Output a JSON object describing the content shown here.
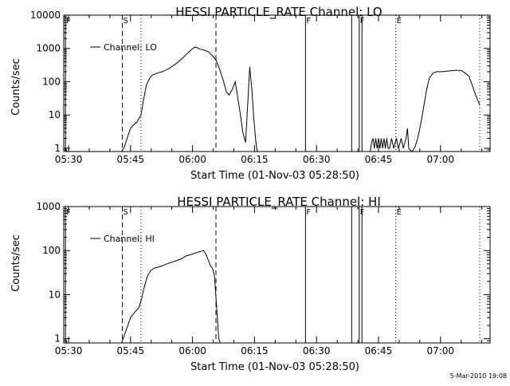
{
  "footer": {
    "timestamp": "5-Mar-2010 19:08"
  },
  "chart_data": [
    {
      "type": "line",
      "title": "HESSI PARTICLE_RATE Channel: LO",
      "xlabel": "Start Time (01-Nov-03 05:28:50)",
      "ylabel": "Counts/sec",
      "xscale": "time",
      "xlim": [
        "05:28:50",
        "07:12:00"
      ],
      "ylim": [
        0.8,
        10000
      ],
      "yscale": "log",
      "xticks": [
        "05:30",
        "05:45",
        "06:00",
        "06:15",
        "06:30",
        "06:45",
        "07:00"
      ],
      "yticks": [
        "1",
        "10",
        "100",
        "1000",
        "10000"
      ],
      "legend": {
        "position": "top-left",
        "entries": [
          "Channel: LO"
        ]
      },
      "grid": false,
      "markers": [
        {
          "label": "F",
          "time": "05:29:15",
          "style": "solid"
        },
        {
          "label": "S",
          "time": "05:43:00",
          "style": "dashed"
        },
        {
          "time": "05:47:30",
          "style": "dotted"
        },
        {
          "time": "06:05:40",
          "style": "dashed"
        },
        {
          "label": "F",
          "time": "06:27:20",
          "style": "solid"
        },
        {
          "time": "06:38:30",
          "style": "solid"
        },
        {
          "label": "F",
          "time": "06:40:20",
          "style": "solid"
        },
        {
          "time": "06:41:00",
          "style": "solid"
        },
        {
          "label": "E",
          "time": "06:49:10",
          "style": "dotted"
        },
        {
          "time": "07:09:30",
          "style": "dotted"
        }
      ],
      "series": [
        {
          "name": "Channel: LO",
          "segments": [
            [
              [
                "05:29:15",
                1
              ],
              [
                "05:29:35",
                0.8
              ]
            ],
            [
              [
                "05:42:50",
                0.8
              ],
              [
                "05:43:30",
                1.1
              ],
              [
                "05:44:10",
                2
              ],
              [
                "05:45:00",
                4
              ],
              [
                "05:45:40",
                5
              ],
              [
                "05:46:30",
                6
              ],
              [
                "05:47:30",
                10
              ],
              [
                "05:48:10",
                30
              ],
              [
                "05:48:50",
                80
              ],
              [
                "05:49:40",
                130
              ],
              [
                "05:50:20",
                160
              ],
              [
                "05:51:20",
                180
              ],
              [
                "05:52:40",
                200
              ],
              [
                "05:54:20",
                250
              ],
              [
                "05:56:00",
                350
              ],
              [
                "05:57:30",
                500
              ],
              [
                "05:58:40",
                700
              ],
              [
                "05:59:50",
                950
              ],
              [
                "06:00:30",
                1100
              ],
              [
                "06:01:10",
                1050
              ],
              [
                "06:01:50",
                950
              ],
              [
                "06:02:40",
                900
              ],
              [
                "06:03:50",
                800
              ],
              [
                "06:04:50",
                600
              ],
              [
                "06:05:40",
                450
              ],
              [
                "06:06:30",
                250
              ],
              [
                "06:07:20",
                120
              ],
              [
                "06:08:10",
                50
              ],
              [
                "06:08:50",
                40
              ],
              [
                "06:09:40",
                60
              ],
              [
                "06:10:20",
                100
              ],
              [
                "06:10:50",
                40
              ],
              [
                "06:11:30",
                12
              ],
              [
                "06:12:10",
                3
              ],
              [
                "06:12:50",
                1.5
              ],
              [
                "06:13:20",
                20
              ],
              [
                "06:13:50",
                280
              ],
              [
                "06:14:20",
                60
              ],
              [
                "06:14:50",
                8
              ],
              [
                "06:15:20",
                1.5
              ],
              [
                "06:15:40",
                0.8
              ]
            ],
            [
              [
                "06:43:00",
                0.8
              ],
              [
                "06:43:20",
                1.5
              ],
              [
                "06:43:40",
                2
              ],
              [
                "06:44:00",
                1
              ],
              [
                "06:44:20",
                2
              ],
              [
                "06:44:40",
                1
              ],
              [
                "06:45:00",
                2
              ],
              [
                "06:45:20",
                1
              ],
              [
                "06:45:40",
                2
              ],
              [
                "06:46:00",
                1
              ],
              [
                "06:46:20",
                2
              ],
              [
                "06:46:40",
                1
              ],
              [
                "06:47:00",
                2
              ],
              [
                "06:47:20",
                1
              ],
              [
                "06:47:40",
                1
              ],
              [
                "06:48:10",
                2
              ],
              [
                "06:48:40",
                1
              ],
              [
                "06:49:20",
                2
              ],
              [
                "06:49:50",
                1
              ],
              [
                "06:50:30",
                2
              ],
              [
                "06:51:00",
                1
              ],
              [
                "06:51:40",
                2
              ],
              [
                "06:52:00",
                4
              ],
              [
                "06:52:20",
                1
              ],
              [
                "06:53:00",
                0.8
              ]
            ],
            [
              [
                "06:53:10",
                0.8
              ],
              [
                "06:53:50",
                1.1
              ],
              [
                "06:54:30",
                2
              ],
              [
                "06:55:10",
                5
              ],
              [
                "06:55:50",
                15
              ],
              [
                "06:56:40",
                60
              ],
              [
                "06:57:20",
                130
              ],
              [
                "06:58:10",
                180
              ],
              [
                "06:59:00",
                200
              ],
              [
                "07:00:30",
                200
              ],
              [
                "07:02:00",
                210
              ],
              [
                "07:03:30",
                220
              ],
              [
                "07:05:00",
                220
              ],
              [
                "07:06:00",
                180
              ],
              [
                "07:06:50",
                150
              ],
              [
                "07:07:40",
                80
              ],
              [
                "07:08:30",
                40
              ],
              [
                "07:09:30",
                20
              ]
            ]
          ]
        }
      ]
    },
    {
      "type": "line",
      "title": "HESSI PARTICLE_RATE Channel: HI",
      "xlabel": "Start Time (01-Nov-03 05:28:50)",
      "ylabel": "Counts/sec",
      "xscale": "time",
      "xlim": [
        "05:28:50",
        "07:12:00"
      ],
      "ylim": [
        0.8,
        1000
      ],
      "yscale": "log",
      "xticks": [
        "05:30",
        "05:45",
        "06:00",
        "06:15",
        "06:30",
        "06:45",
        "07:00"
      ],
      "yticks": [
        "1",
        "10",
        "100",
        "1000"
      ],
      "legend": {
        "position": "top-left",
        "entries": [
          "Channel: HI"
        ]
      },
      "grid": false,
      "markers": [
        {
          "label": "F",
          "time": "05:29:15",
          "style": "solid"
        },
        {
          "label": "S",
          "time": "05:43:00",
          "style": "dashed"
        },
        {
          "time": "05:47:30",
          "style": "dotted"
        },
        {
          "time": "06:05:40",
          "style": "dashed"
        },
        {
          "label": "F",
          "time": "06:27:20",
          "style": "solid"
        },
        {
          "time": "06:38:30",
          "style": "solid"
        },
        {
          "label": "F",
          "time": "06:40:20",
          "style": "solid"
        },
        {
          "time": "06:41:00",
          "style": "solid"
        },
        {
          "label": "E",
          "time": "06:49:10",
          "style": "dotted"
        },
        {
          "time": "07:09:30",
          "style": "dotted"
        }
      ],
      "series": [
        {
          "name": "Channel: HI",
          "segments": [
            [
              [
                "05:29:15",
                1
              ],
              [
                "05:29:35",
                0.8
              ]
            ],
            [
              [
                "05:42:50",
                0.8
              ],
              [
                "05:43:30",
                1.2
              ],
              [
                "05:44:20",
                2
              ],
              [
                "05:45:00",
                3
              ],
              [
                "05:46:00",
                4
              ],
              [
                "05:47:00",
                5
              ],
              [
                "05:47:40",
                8
              ],
              [
                "05:48:20",
                15
              ],
              [
                "05:49:00",
                25
              ],
              [
                "05:49:50",
                35
              ],
              [
                "05:50:40",
                40
              ],
              [
                "05:51:40",
                42
              ],
              [
                "05:52:40",
                45
              ],
              [
                "05:53:50",
                50
              ],
              [
                "05:55:00",
                55
              ],
              [
                "05:56:20",
                60
              ],
              [
                "05:57:20",
                65
              ],
              [
                "05:58:20",
                75
              ],
              [
                "05:59:20",
                80
              ],
              [
                "06:00:10",
                85
              ],
              [
                "06:01:00",
                90
              ],
              [
                "06:01:50",
                95
              ],
              [
                "06:02:40",
                100
              ],
              [
                "06:03:20",
                80
              ],
              [
                "06:03:50",
                60
              ],
              [
                "06:04:20",
                45
              ],
              [
                "06:04:50",
                40
              ],
              [
                "06:05:20",
                25
              ],
              [
                "06:05:50",
                5
              ],
              [
                "06:06:20",
                1
              ],
              [
                "06:06:40",
                0.8
              ]
            ]
          ]
        }
      ]
    }
  ]
}
